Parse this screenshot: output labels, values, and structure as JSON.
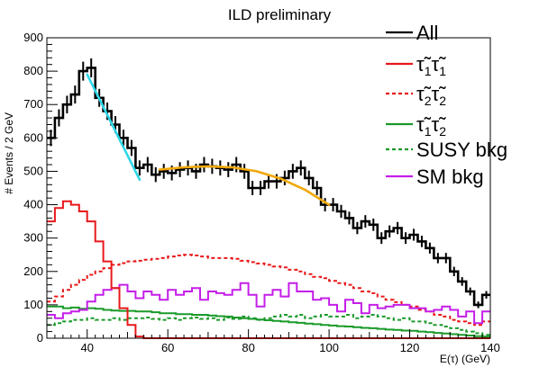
{
  "chart_data": {
    "type": "line",
    "title": "ILD preliminary",
    "xlabel": "E(τ) (GeV)",
    "ylabel": "# Events / 2 GeV",
    "xlim": [
      30,
      140
    ],
    "ylim": [
      0,
      900
    ],
    "x_ticks": [
      "40",
      "60",
      "80",
      "100",
      "120",
      "140"
    ],
    "y_ticks": [
      "0",
      "100",
      "200",
      "300",
      "400",
      "500",
      "600",
      "700",
      "800",
      "900"
    ],
    "legend_position": "top-right",
    "bin_width": 2,
    "series": [
      {
        "name": "All",
        "color": "#000000",
        "style": "step-errors",
        "x": [
          31,
          33,
          35,
          37,
          39,
          41,
          43,
          45,
          47,
          49,
          51,
          53,
          55,
          57,
          59,
          61,
          63,
          65,
          67,
          69,
          71,
          73,
          75,
          77,
          79,
          81,
          83,
          85,
          87,
          89,
          91,
          93,
          95,
          97,
          99,
          101,
          103,
          105,
          107,
          109,
          111,
          113,
          115,
          117,
          119,
          121,
          123,
          125,
          127,
          129,
          131,
          133,
          135,
          137,
          139
        ],
        "values": [
          600,
          660,
          700,
          730,
          800,
          810,
          720,
          680,
          640,
          600,
          570,
          510,
          520,
          490,
          500,
          495,
          505,
          510,
          500,
          520,
          515,
          510,
          505,
          520,
          500,
          450,
          450,
          470,
          470,
          480,
          500,
          510,
          480,
          450,
          400,
          400,
          380,
          360,
          330,
          350,
          340,
          300,
          320,
          330,
          300,
          310,
          290,
          270,
          240,
          240,
          200,
          170,
          140,
          100,
          130
        ]
      },
      {
        "name": "τ̃1τ̃1",
        "color": "#e8181a",
        "style": "step-solid",
        "x": [
          31,
          33,
          35,
          37,
          39,
          41,
          43,
          45,
          47,
          49,
          51,
          53,
          55,
          57,
          59,
          61,
          63,
          65,
          67,
          69,
          71,
          73,
          75,
          77,
          79,
          81,
          83,
          85,
          87,
          89,
          91,
          93,
          95,
          97,
          99,
          101,
          103,
          105,
          107,
          109,
          111,
          113,
          115,
          117,
          119,
          121,
          123,
          125,
          127,
          129,
          131,
          133,
          135,
          137,
          139
        ],
        "values": [
          350,
          390,
          410,
          400,
          380,
          350,
          290,
          230,
          150,
          90,
          40,
          5,
          0,
          0,
          0,
          0,
          0,
          0,
          0,
          0,
          0,
          0,
          0,
          0,
          0,
          0,
          0,
          0,
          0,
          0,
          0,
          0,
          0,
          0,
          0,
          0,
          0,
          0,
          0,
          0,
          0,
          0,
          0,
          0,
          0,
          0,
          0,
          0,
          0,
          0,
          0,
          0,
          0,
          0,
          0
        ]
      },
      {
        "name": "τ̃2τ̃2",
        "color": "#e8181a",
        "style": "step-dashed",
        "x": [
          31,
          33,
          35,
          37,
          39,
          41,
          43,
          45,
          47,
          49,
          51,
          53,
          55,
          57,
          59,
          61,
          63,
          65,
          67,
          69,
          71,
          73,
          75,
          77,
          79,
          81,
          83,
          85,
          87,
          89,
          91,
          93,
          95,
          97,
          99,
          101,
          103,
          105,
          107,
          109,
          111,
          113,
          115,
          117,
          119,
          121,
          123,
          125,
          127,
          129,
          131,
          133,
          135,
          137,
          139
        ],
        "values": [
          110,
          125,
          145,
          160,
          175,
          190,
          200,
          210,
          220,
          225,
          230,
          232,
          235,
          238,
          240,
          245,
          248,
          250,
          248,
          245,
          240,
          240,
          240,
          238,
          232,
          228,
          224,
          220,
          215,
          212,
          205,
          200,
          192,
          184,
          180,
          172,
          165,
          160,
          150,
          140,
          135,
          125,
          115,
          108,
          100,
          95,
          85,
          80,
          70,
          65,
          55,
          50,
          45,
          40,
          50
        ]
      },
      {
        "name": "τ̃1τ̃2",
        "color": "#1a9a2a",
        "style": "step-solid",
        "x": [
          31,
          33,
          35,
          37,
          39,
          41,
          43,
          45,
          47,
          49,
          51,
          53,
          55,
          57,
          59,
          61,
          63,
          65,
          67,
          69,
          71,
          73,
          75,
          77,
          79,
          81,
          83,
          85,
          87,
          89,
          91,
          93,
          95,
          97,
          99,
          101,
          103,
          105,
          107,
          109,
          111,
          113,
          115,
          117,
          119,
          121,
          123,
          125,
          127,
          129,
          131,
          133,
          135,
          137,
          139
        ],
        "values": [
          95,
          95,
          90,
          92,
          88,
          90,
          88,
          85,
          83,
          82,
          82,
          80,
          80,
          78,
          75,
          75,
          72,
          72,
          70,
          70,
          68,
          66,
          65,
          62,
          60,
          58,
          56,
          54,
          52,
          50,
          48,
          46,
          44,
          42,
          40,
          38,
          36,
          35,
          33,
          31,
          30,
          28,
          26,
          25,
          23,
          22,
          20,
          18,
          16,
          14,
          12,
          10,
          8,
          6,
          5
        ]
      },
      {
        "name": "SUSY bkg",
        "color": "#1a9a2a",
        "style": "step-dashed",
        "x": [
          31,
          33,
          35,
          37,
          39,
          41,
          43,
          45,
          47,
          49,
          51,
          53,
          55,
          57,
          59,
          61,
          63,
          65,
          67,
          69,
          71,
          73,
          75,
          77,
          79,
          81,
          83,
          85,
          87,
          89,
          91,
          93,
          95,
          97,
          99,
          101,
          103,
          105,
          107,
          109,
          111,
          113,
          115,
          117,
          119,
          121,
          123,
          125,
          127,
          129,
          131,
          133,
          135,
          137,
          139
        ],
        "values": [
          40,
          45,
          50,
          55,
          55,
          60,
          55,
          55,
          60,
          55,
          60,
          60,
          62,
          58,
          55,
          60,
          55,
          60,
          62,
          58,
          60,
          55,
          62,
          58,
          65,
          60,
          55,
          60,
          65,
          70,
          65,
          70,
          60,
          65,
          70,
          65,
          65,
          70,
          60,
          65,
          70,
          65,
          60,
          55,
          60,
          50,
          50,
          45,
          40,
          35,
          30,
          25,
          20,
          15,
          10
        ]
      },
      {
        "name": "SM bkg",
        "color": "#c41ee8",
        "style": "step-solid",
        "x": [
          31,
          33,
          35,
          37,
          39,
          41,
          43,
          45,
          47,
          49,
          51,
          53,
          55,
          57,
          59,
          61,
          63,
          65,
          67,
          69,
          71,
          73,
          75,
          77,
          79,
          81,
          83,
          85,
          87,
          89,
          91,
          93,
          95,
          97,
          99,
          101,
          103,
          105,
          107,
          109,
          111,
          113,
          115,
          117,
          119,
          121,
          123,
          125,
          127,
          129,
          131,
          133,
          135,
          137,
          139
        ],
        "values": [
          70,
          60,
          75,
          80,
          85,
          110,
          130,
          145,
          150,
          160,
          140,
          120,
          140,
          130,
          115,
          145,
          130,
          140,
          150,
          115,
          140,
          135,
          130,
          145,
          165,
          130,
          95,
          130,
          145,
          125,
          165,
          140,
          140,
          115,
          120,
          100,
          80,
          115,
          105,
          75,
          100,
          90,
          95,
          100,
          100,
          90,
          90,
          80,
          85,
          95,
          85,
          65,
          80,
          45,
          80
        ]
      }
    ],
    "fits": [
      {
        "color": "#2ed6e8",
        "x": [
          40,
          53
        ],
        "values": [
          790,
          475
        ]
      },
      {
        "color": "#f0a80a",
        "x": [
          58,
          64,
          70,
          76,
          82,
          88,
          94,
          100
        ],
        "values": [
          505,
          512,
          515,
          512,
          500,
          478,
          445,
          400
        ]
      }
    ]
  }
}
